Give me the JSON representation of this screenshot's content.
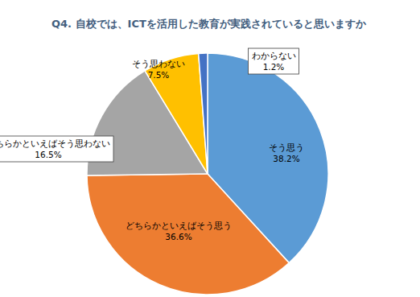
{
  "chart_data": {
    "type": "pie",
    "title": "Q4. 自校では、ICTを活用した教育が実践されていると思いますか",
    "categories": [
      "そう思う",
      "どちらかといえばそう思う",
      "どちらかといえばそう思わない",
      "そう思わない",
      "わからない"
    ],
    "values": [
      38.2,
      36.6,
      16.5,
      7.5,
      1.2
    ],
    "value_labels": [
      "38.2%",
      "36.6%",
      "16.5%",
      "7.5%",
      "1.2%"
    ],
    "colors": [
      "#5b9bd5",
      "#ed7d31",
      "#a5a5a5",
      "#ffc000",
      "#4472c4"
    ],
    "data_labels": true
  }
}
